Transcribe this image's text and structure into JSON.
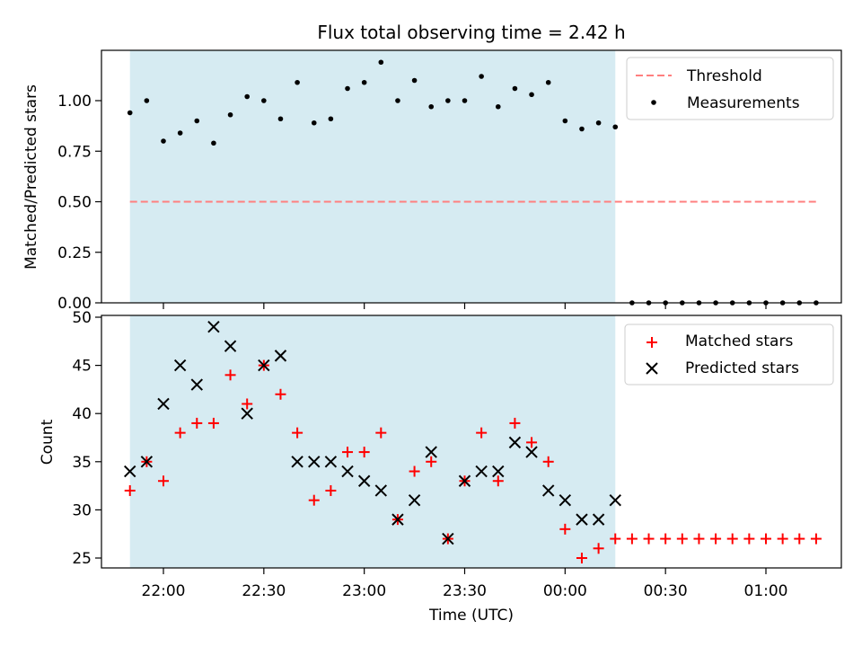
{
  "chart_data": [
    {
      "type": "scatter",
      "title": "Flux total observing time = 2.42 h",
      "xlabel": "",
      "ylabel": "Matched/Predicted stars",
      "ylim": [
        0,
        1.25
      ],
      "yticks": [
        "0.00",
        "0.25",
        "0.50",
        "0.75",
        "1.00"
      ],
      "shaded_x_range_minutes": [
        -10,
        135
      ],
      "threshold": {
        "name": "Threshold",
        "value": 0.5,
        "color": "#ff7f7f",
        "x_range_minutes": [
          -10,
          195
        ]
      },
      "series": [
        {
          "name": "Measurements",
          "color": "#000000",
          "x_minutes": [
            -10,
            -5,
            0,
            5,
            10,
            15,
            20,
            25,
            30,
            35,
            40,
            45,
            50,
            55,
            60,
            65,
            70,
            75,
            80,
            85,
            90,
            95,
            100,
            105,
            110,
            115,
            120,
            125,
            130,
            135,
            140,
            145,
            150,
            155,
            160,
            165,
            170,
            175,
            180,
            185,
            190,
            195
          ],
          "y": [
            0.94,
            1.0,
            0.8,
            0.84,
            0.9,
            0.79,
            0.93,
            1.02,
            1.0,
            0.91,
            1.09,
            0.89,
            0.91,
            1.06,
            1.09,
            1.19,
            1.0,
            1.1,
            0.97,
            1.0,
            1.0,
            1.12,
            0.97,
            1.06,
            1.03,
            1.09,
            0.9,
            0.86,
            0.89,
            0.87,
            0.0,
            0.0,
            0.0,
            0.0,
            0.0,
            0.0,
            0.0,
            0.0,
            0.0,
            0.0,
            0.0,
            0.0
          ]
        }
      ]
    },
    {
      "type": "scatter",
      "title": "",
      "xlabel": "Time (UTC)",
      "ylabel": "Count",
      "ylim": [
        24,
        50
      ],
      "yticks": [
        "25",
        "30",
        "35",
        "40",
        "45",
        "50"
      ],
      "xticks": [
        "22:00",
        "22:30",
        "23:00",
        "23:30",
        "00:00",
        "00:30",
        "01:00"
      ],
      "shaded_x_range_minutes": [
        -10,
        135
      ],
      "series": [
        {
          "name": "Matched stars",
          "marker": "+",
          "color": "#ff0000",
          "x_minutes": [
            -10,
            -5,
            0,
            5,
            10,
            15,
            20,
            25,
            30,
            35,
            40,
            45,
            50,
            55,
            60,
            65,
            70,
            75,
            80,
            85,
            90,
            95,
            100,
            105,
            110,
            115,
            120,
            125,
            130,
            135,
            140,
            145,
            150,
            155,
            160,
            165,
            170,
            175,
            180,
            185,
            190,
            195
          ],
          "y": [
            32,
            35,
            33,
            38,
            39,
            39,
            44,
            41,
            45,
            42,
            38,
            31,
            32,
            36,
            36,
            38,
            29,
            34,
            35,
            27,
            33,
            38,
            33,
            39,
            37,
            35,
            28,
            25,
            26,
            27,
            27,
            27,
            27,
            27,
            27,
            27,
            27,
            27,
            27,
            27,
            27,
            27
          ]
        },
        {
          "name": "Predicted stars",
          "marker": "x",
          "color": "#000000",
          "x_minutes": [
            -10,
            -5,
            0,
            5,
            10,
            15,
            20,
            25,
            30,
            35,
            40,
            45,
            50,
            55,
            60,
            65,
            70,
            75,
            80,
            85,
            90,
            95,
            100,
            105,
            110,
            115,
            120,
            125,
            130,
            135
          ],
          "y": [
            34,
            35,
            41,
            45,
            43,
            49,
            47,
            40,
            45,
            46,
            35,
            35,
            35,
            34,
            33,
            32,
            29,
            31,
            36,
            27,
            33,
            34,
            34,
            37,
            36,
            32,
            31,
            29,
            29,
            31
          ]
        }
      ]
    }
  ]
}
